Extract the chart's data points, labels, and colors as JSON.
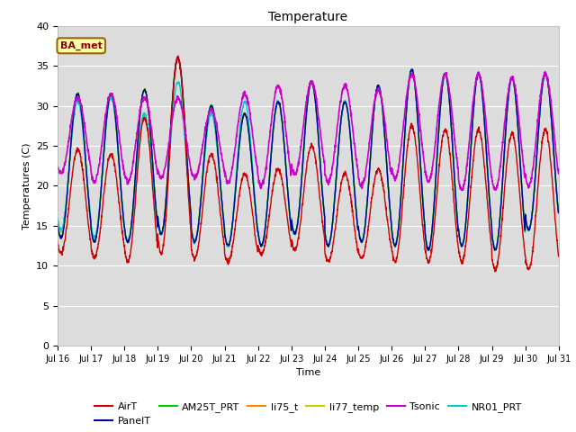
{
  "title": "Temperature",
  "ylabel": "Temperatures (C)",
  "xlabel": "Time",
  "ylim": [
    0,
    40
  ],
  "yticks": [
    0,
    5,
    10,
    15,
    20,
    25,
    30,
    35,
    40
  ],
  "bg_color": "#dcdcdc",
  "fig_bg": "#ffffff",
  "annotation_text": "BA_met",
  "series": {
    "AirT": {
      "color": "#cc0000",
      "lw": 1.0
    },
    "PanelT": {
      "color": "#000099",
      "lw": 1.0
    },
    "AM25T_PRT": {
      "color": "#00cc00",
      "lw": 1.0
    },
    "li75_t": {
      "color": "#ff8800",
      "lw": 1.0
    },
    "li77_temp": {
      "color": "#cccc00",
      "lw": 1.0
    },
    "Tsonic": {
      "color": "#cc00cc",
      "lw": 1.2
    },
    "NR01_PRT": {
      "color": "#00cccc",
      "lw": 1.0
    }
  },
  "legend_order": [
    "AirT",
    "PanelT",
    "AM25T_PRT",
    "li75_t",
    "li77_temp",
    "Tsonic",
    "NR01_PRT"
  ],
  "n_days": 15,
  "pts_per_day": 144,
  "AirT_mins": [
    11.5,
    11.0,
    10.5,
    11.5,
    11.0,
    10.5,
    11.5,
    12.0,
    10.5,
    11.0,
    10.5,
    10.5,
    10.5,
    9.5,
    9.5
  ],
  "AirT_maxs": [
    24.5,
    24.0,
    28.5,
    36.0,
    24.0,
    21.5,
    22.0,
    25.0,
    21.5,
    22.0,
    27.5,
    27.0,
    27.0,
    26.5,
    27.0
  ],
  "cluster_mins": [
    13.5,
    13.0,
    13.0,
    14.0,
    13.0,
    12.5,
    12.5,
    14.0,
    12.5,
    13.0,
    12.5,
    12.0,
    12.5,
    12.0,
    14.5
  ],
  "cluster_maxs": [
    31.5,
    31.5,
    32.0,
    36.0,
    30.0,
    29.0,
    30.5,
    33.0,
    30.5,
    32.5,
    34.5,
    34.0,
    34.0,
    33.5,
    34.0
  ],
  "Tsonic_mins": [
    21.5,
    20.5,
    20.5,
    21.0,
    21.0,
    20.5,
    20.0,
    21.5,
    20.5,
    20.0,
    21.0,
    20.5,
    19.5,
    19.5,
    20.0
  ],
  "Tsonic_maxs": [
    31.0,
    31.5,
    31.0,
    31.0,
    29.5,
    31.5,
    32.5,
    33.0,
    32.5,
    32.0,
    34.0,
    34.0,
    34.0,
    33.5,
    34.0
  ],
  "NR01_mins": [
    14.5,
    13.5,
    13.0,
    14.0,
    13.0,
    12.5,
    12.5,
    14.0,
    12.5,
    13.0,
    12.5,
    12.0,
    12.5,
    12.0,
    14.5
  ],
  "NR01_maxs": [
    30.5,
    31.0,
    29.0,
    33.0,
    29.0,
    30.5,
    30.5,
    33.0,
    30.5,
    32.5,
    34.5,
    34.0,
    34.0,
    33.5,
    34.0
  ]
}
